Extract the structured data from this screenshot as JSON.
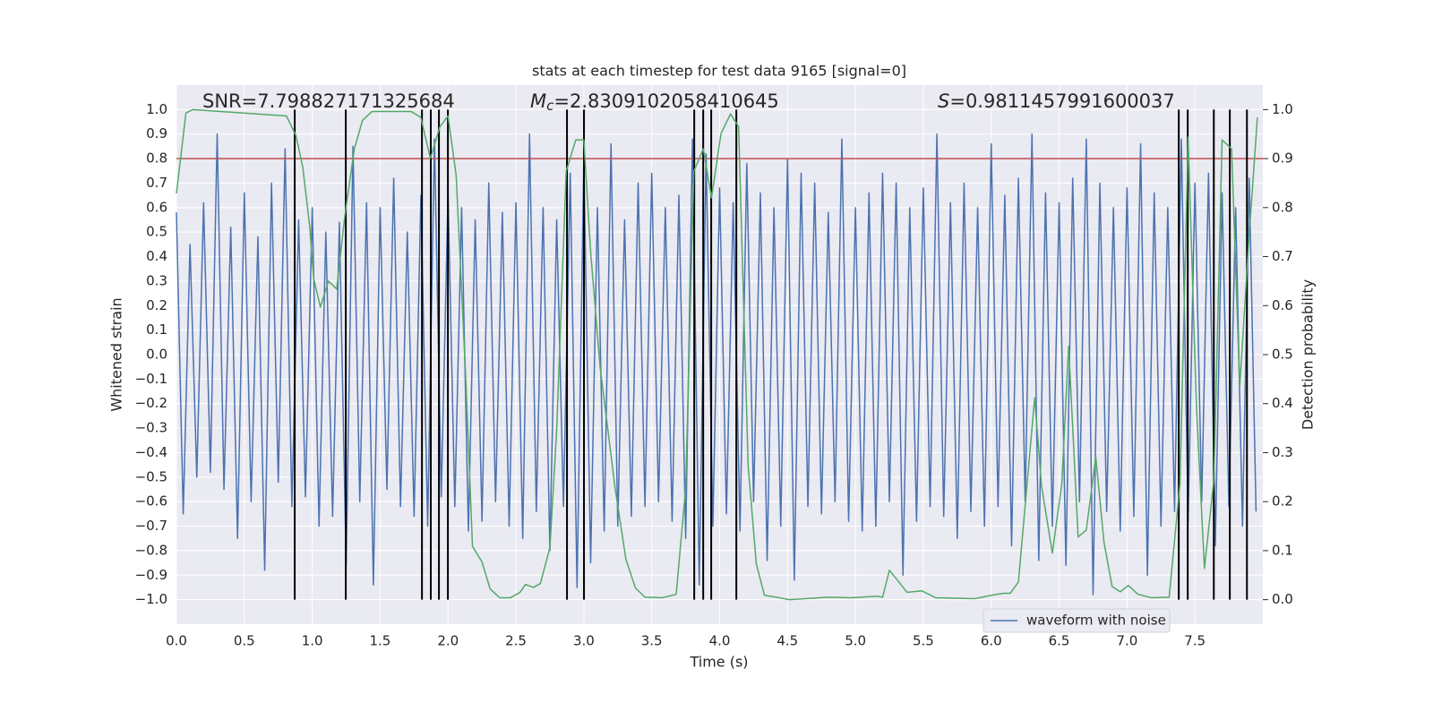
{
  "chart_data": {
    "type": "line",
    "title": "stats at each timestep for test data 9165 [signal=0]",
    "xlabel": "Time (s)",
    "ylabel": "Whitened strain",
    "y2label": "Detection probability",
    "annotations": [
      {
        "text": "SNR=7.798827171325684"
      },
      {
        "symbol": "M",
        "subscript": "c",
        "text": "=2.8309102058410645"
      },
      {
        "symbol": "S",
        "text": "=0.9811457991600037"
      }
    ],
    "xlim": [
      0,
      8
    ],
    "ylim": [
      -1.1,
      1.1
    ],
    "y2lim": [
      -0.05,
      1.05
    ],
    "xticks": [
      {
        "value": 0,
        "label": "0.0"
      },
      0.5,
      {
        "value": 1,
        "label": "1.0"
      },
      1.5,
      {
        "value": 2,
        "label": "2.0"
      },
      2.5,
      {
        "value": 3,
        "label": "3.0"
      },
      3.5,
      {
        "value": 4,
        "label": "4.0"
      },
      4.5,
      {
        "value": 5,
        "label": "5.0"
      },
      5.5,
      {
        "value": 6,
        "label": "6.0"
      },
      6.5,
      {
        "value": 7,
        "label": "7.0"
      },
      7.5
    ],
    "yticks": [
      {
        "value": -1,
        "label": "−1.0"
      },
      {
        "value": -0.9,
        "label": "−0.9"
      },
      {
        "value": -0.8,
        "label": "−0.8"
      },
      {
        "value": -0.7,
        "label": "−0.7"
      },
      {
        "value": -0.6,
        "label": "−0.6"
      },
      {
        "value": -0.5,
        "label": "−0.5"
      },
      {
        "value": -0.4,
        "label": "−0.4"
      },
      {
        "value": -0.3,
        "label": "−0.3"
      },
      {
        "value": -0.2,
        "label": "−0.2"
      },
      {
        "value": -0.1,
        "label": "−0.1"
      },
      {
        "value": 0,
        "label": "0.0"
      },
      0.1,
      0.2,
      0.3,
      0.4,
      0.5,
      0.6,
      0.7,
      0.8,
      0.9,
      {
        "value": 1,
        "label": "1.0"
      }
    ],
    "y2ticks": [
      {
        "value": 0,
        "label": "0.0"
      },
      0.1,
      0.2,
      0.3,
      0.4,
      0.5,
      0.6,
      0.7,
      0.8,
      0.9,
      {
        "value": 1,
        "label": "1.0"
      }
    ],
    "grid": true,
    "legend": "lower right",
    "series": [
      {
        "name": "waveform with noise",
        "color": "#4c72b0",
        "x": [
          0,
          0.05,
          0.1,
          0.15,
          0.2,
          0.25,
          0.3,
          0.35,
          0.4,
          0.45,
          0.5,
          0.55,
          0.6,
          0.65,
          0.7,
          0.75,
          0.8,
          0.85,
          0.9,
          0.95,
          1,
          1.05,
          1.1,
          1.15,
          1.2,
          1.25,
          1.3,
          1.35,
          1.4,
          1.45,
          1.5,
          1.55,
          1.6,
          1.65,
          1.7,
          1.75,
          1.8,
          1.85,
          1.9,
          1.95,
          2,
          2.05,
          2.1,
          2.15,
          2.2,
          2.25,
          2.3,
          2.35,
          2.4,
          2.45,
          2.5,
          2.55,
          2.6,
          2.65,
          2.7,
          2.75,
          2.8,
          2.85,
          2.9,
          2.95,
          3,
          3.05,
          3.1,
          3.15,
          3.2,
          3.25,
          3.3,
          3.35,
          3.4,
          3.45,
          3.5,
          3.55,
          3.6,
          3.65,
          3.7,
          3.75,
          3.8,
          3.85,
          3.9,
          3.95,
          4,
          4.05,
          4.1,
          4.15,
          4.2,
          4.25,
          4.3,
          4.35,
          4.4,
          4.45,
          4.5,
          4.55,
          4.6,
          4.65,
          4.7,
          4.75,
          4.8,
          4.85,
          4.9,
          4.95,
          5,
          5.05,
          5.1,
          5.15,
          5.2,
          5.25,
          5.3,
          5.35,
          5.4,
          5.45,
          5.5,
          5.55,
          5.6,
          5.65,
          5.7,
          5.75,
          5.8,
          5.85,
          5.9,
          5.95,
          6,
          6.05,
          6.1,
          6.15,
          6.2,
          6.25,
          6.3,
          6.35,
          6.4,
          6.45,
          6.5,
          6.55,
          6.6,
          6.65,
          6.7,
          6.75,
          6.8,
          6.85,
          6.9,
          6.95,
          7,
          7.05,
          7.1,
          7.15,
          7.2,
          7.25,
          7.3,
          7.35,
          7.4,
          7.45,
          7.5,
          7.55,
          7.6,
          7.65,
          7.7,
          7.75,
          7.8,
          7.85,
          7.9,
          7.95
        ],
        "values": [
          0.58,
          -0.65,
          0.45,
          -0.5,
          0.62,
          -0.48,
          0.9,
          -0.55,
          0.52,
          -0.75,
          0.66,
          -0.6,
          0.48,
          -0.88,
          0.7,
          -0.52,
          0.84,
          -0.62,
          0.55,
          -0.58,
          0.6,
          -0.7,
          0.5,
          -0.66,
          0.54,
          -0.86,
          0.85,
          -0.6,
          0.62,
          -0.94,
          0.6,
          -0.55,
          0.72,
          -0.62,
          0.5,
          -0.66,
          0.65,
          -0.7,
          0.88,
          -0.58,
          0.66,
          -0.62,
          0.6,
          -0.72,
          0.55,
          -0.68,
          0.7,
          -0.6,
          0.58,
          -0.7,
          0.62,
          -0.75,
          0.9,
          -0.64,
          0.6,
          -0.8,
          0.55,
          -0.62,
          0.74,
          -0.95,
          0.8,
          -0.85,
          0.6,
          -0.72,
          0.86,
          -0.7,
          0.55,
          -0.66,
          0.7,
          -0.62,
          0.74,
          -0.6,
          0.6,
          -0.68,
          0.65,
          -0.75,
          0.88,
          -0.94,
          0.82,
          -0.7,
          0.68,
          -0.65,
          0.62,
          -0.72,
          0.78,
          -0.6,
          0.66,
          -0.84,
          0.6,
          -0.7,
          0.8,
          -0.92,
          0.74,
          -0.62,
          0.7,
          -0.65,
          0.58,
          -0.6,
          0.88,
          -0.68,
          0.6,
          -0.72,
          0.66,
          -0.7,
          0.74,
          -0.6,
          0.7,
          -0.9,
          0.6,
          -0.68,
          0.68,
          -0.62,
          0.9,
          -0.66,
          0.62,
          -0.75,
          0.7,
          -0.64,
          0.6,
          -0.7,
          0.86,
          -0.62,
          0.65,
          -0.78,
          0.72,
          -0.6,
          0.9,
          -0.84,
          0.66,
          -0.7,
          0.62,
          -0.86,
          0.72,
          -0.6,
          0.88,
          -0.98,
          0.7,
          -0.64,
          0.6,
          -0.72,
          0.68,
          -0.66,
          0.86,
          -0.9,
          0.66,
          -0.7,
          0.6,
          -0.64,
          0.88,
          -0.68,
          0.7,
          -0.6,
          0.74,
          -0.78,
          0.66,
          -0.62,
          0.6,
          -0.7,
          0.72,
          -0.64
        ]
      },
      {
        "color": "#55a868",
        "axis": "y2",
        "x": [
          0,
          0.07,
          0.12,
          0.81,
          0.88,
          0.93,
          0.98,
          1.01,
          1.06,
          1.12,
          1.18,
          1.24,
          1.31,
          1.37,
          1.44,
          1.73,
          1.8,
          1.87,
          1.94,
          2,
          2.06,
          2.13,
          2.18,
          2.25,
          2.31,
          2.38,
          2.46,
          2.53,
          2.57,
          2.63,
          2.68,
          2.75,
          2.8,
          2.87,
          2.94,
          3,
          3.05,
          3.12,
          3.23,
          3.31,
          3.38,
          3.45,
          3.58,
          3.68,
          3.75,
          3.81,
          3.88,
          3.94,
          4.01,
          4.08,
          4.14,
          4.21,
          4.27,
          4.33,
          4.44,
          4.51,
          4.8,
          4.97,
          5.16,
          5.2,
          5.25,
          5.32,
          5.38,
          5.49,
          5.59,
          5.88,
          6,
          6.09,
          6.14,
          6.2,
          6.32,
          6.37,
          6.45,
          6.52,
          6.57,
          6.64,
          6.7,
          6.77,
          6.83,
          6.89,
          6.95,
          7.01,
          7.08,
          7.18,
          7.31,
          7.39,
          7.45,
          7.51,
          7.57,
          7.64,
          7.7,
          7.77,
          7.83,
          7.9,
          7.96
        ],
        "values": [
          0.829,
          0.993,
          1.0,
          0.987,
          0.947,
          0.883,
          0.765,
          0.656,
          0.597,
          0.65,
          0.634,
          0.783,
          0.92,
          0.978,
          0.996,
          0.996,
          0.984,
          0.9,
          0.965,
          0.987,
          0.865,
          0.455,
          0.109,
          0.077,
          0.022,
          0.004,
          0.004,
          0.015,
          0.031,
          0.025,
          0.033,
          0.106,
          0.346,
          0.874,
          0.938,
          0.938,
          0.71,
          0.474,
          0.228,
          0.082,
          0.024,
          0.005,
          0.004,
          0.011,
          0.228,
          0.874,
          0.92,
          0.82,
          0.951,
          0.991,
          0.965,
          0.273,
          0.073,
          0.009,
          0.004,
          0.0,
          0.005,
          0.004,
          0.007,
          0.005,
          0.06,
          0.036,
          0.015,
          0.018,
          0.004,
          0.002,
          0.009,
          0.013,
          0.013,
          0.036,
          0.412,
          0.233,
          0.095,
          0.237,
          0.517,
          0.128,
          0.142,
          0.291,
          0.118,
          0.027,
          0.016,
          0.029,
          0.011,
          0.004,
          0.005,
          0.237,
          0.944,
          0.401,
          0.064,
          0.246,
          0.938,
          0.92,
          0.434,
          0.747,
          0.984
        ]
      }
    ],
    "threshold": {
      "value": 0.9,
      "axis": "y2",
      "color": "#c44e52"
    },
    "vlines": {
      "color": "#000000",
      "ymin": -1,
      "ymax": 1,
      "x": [
        0.871,
        1.247,
        1.808,
        1.873,
        1.933,
        1.999,
        2.876,
        3.001,
        3.813,
        3.879,
        3.938,
        4.123,
        7.381,
        7.447,
        7.639,
        7.757,
        7.883
      ]
    }
  }
}
